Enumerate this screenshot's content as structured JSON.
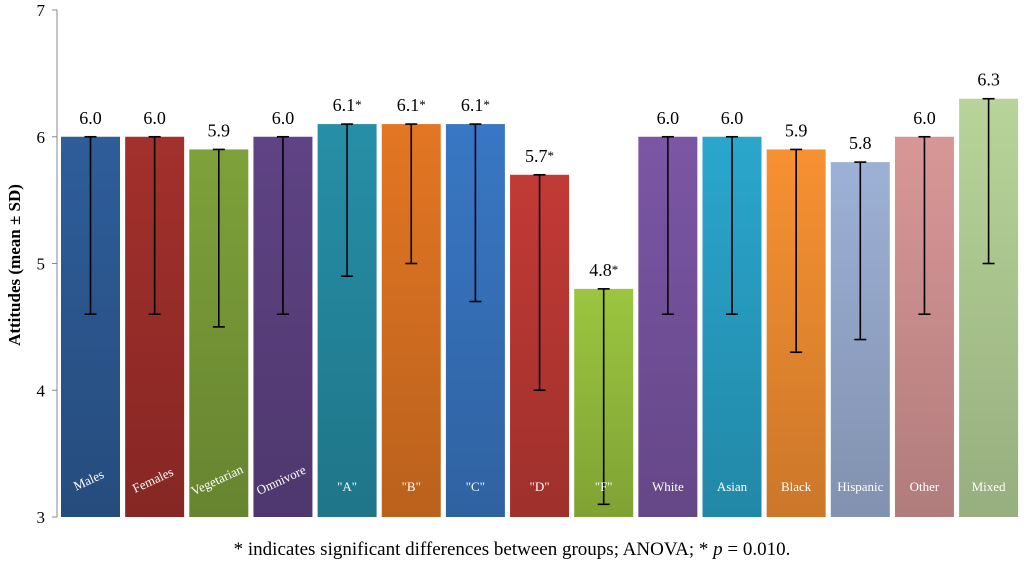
{
  "chart_data": {
    "type": "bar",
    "ylabel": "Attitudes (mean ± SD)",
    "ylim": [
      3,
      7
    ],
    "yticks": [
      "3",
      "4",
      "5",
      "6",
      "7"
    ],
    "categories": [
      "Males",
      "Females",
      "Vegetarian",
      "Omnivore",
      "\"A\"",
      "\"B\"",
      "\"C\"",
      "\"D\"",
      "\"F\"",
      "White",
      "Asian",
      "Black",
      "Hispanic",
      "Other",
      "Mixed"
    ],
    "values": [
      6.0,
      6.0,
      5.9,
      6.0,
      6.1,
      6.1,
      6.1,
      5.7,
      4.8,
      6.0,
      6.0,
      5.9,
      5.8,
      6.0,
      6.3
    ],
    "value_labels": [
      "6.0",
      "6.0",
      "5.9",
      "6.0",
      "6.1",
      "6.1",
      "6.1",
      "5.7",
      "4.8",
      "6.0",
      "6.0",
      "5.9",
      "5.8",
      "6.0",
      "6.3"
    ],
    "significant": [
      false,
      false,
      false,
      false,
      true,
      true,
      true,
      true,
      true,
      false,
      false,
      false,
      false,
      false,
      false
    ],
    "significance_mark": "*",
    "error_low": [
      4.6,
      4.6,
      4.5,
      4.6,
      4.9,
      5.0,
      4.7,
      4.0,
      3.1,
      4.6,
      4.6,
      4.3,
      4.4,
      4.6,
      5.0
    ],
    "error_high": [
      6.0,
      6.0,
      5.9,
      6.0,
      6.1,
      6.1,
      6.1,
      5.7,
      4.8,
      6.0,
      6.0,
      5.9,
      5.8,
      6.0,
      6.3
    ],
    "colors": [
      "#2e5d99",
      "#a3302c",
      "#7ea13a",
      "#5f4385",
      "#268fa7",
      "#e37623",
      "#3977c4",
      "#c23a36",
      "#9cc540",
      "#7b56a5",
      "#2aa6cc",
      "#f79132",
      "#9db1d6",
      "#d89797",
      "#b8d49a"
    ],
    "label_rotated": [
      true,
      true,
      true,
      true,
      false,
      false,
      false,
      false,
      false,
      false,
      false,
      false,
      false,
      false,
      false
    ]
  },
  "footnote": "* indicates significant differences between groups; ANOVA; * p = 0.010."
}
